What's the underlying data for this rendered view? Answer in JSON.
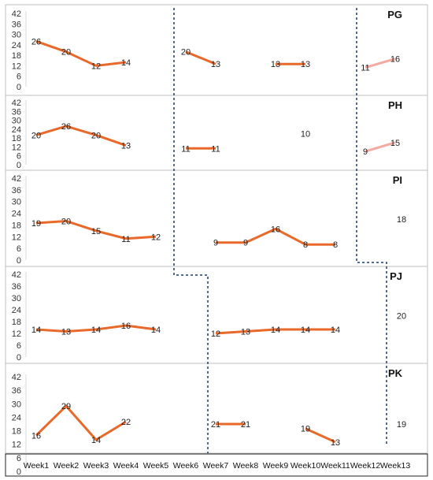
{
  "chart_data": {
    "type": "line",
    "categories": [
      "Week1",
      "Week2",
      "Week3",
      "Week4",
      "Week5",
      "Week6",
      "Week7",
      "Week8",
      "Week9",
      "Week10",
      "Week11",
      "Week12",
      "Week13"
    ],
    "ylim": [
      0,
      42
    ],
    "yticks": [
      0,
      6,
      12,
      18,
      24,
      30,
      36,
      42
    ],
    "grid": false,
    "colors": {
      "main": "#e8692a",
      "light": "#f4aaa0",
      "divider": "#1f3c64",
      "frame": "#bfbfbf"
    },
    "panels": [
      {
        "title": "PG",
        "segments": [
          {
            "style": "main",
            "points": [
              [
                1,
                26
              ],
              [
                2,
                20
              ],
              [
                3,
                12
              ],
              [
                4,
                14
              ]
            ]
          },
          {
            "style": "main",
            "points": [
              [
                6,
                20
              ],
              [
                7,
                13
              ]
            ]
          },
          {
            "style": "main",
            "points": [
              [
                9,
                13
              ],
              [
                10,
                13
              ]
            ]
          },
          {
            "style": "light",
            "points": [
              [
                12,
                11
              ],
              [
                13,
                16
              ]
            ]
          }
        ],
        "labels_only": []
      },
      {
        "title": "PH",
        "segments": [
          {
            "style": "main",
            "points": [
              [
                1,
                20
              ],
              [
                2,
                26
              ],
              [
                3,
                20
              ],
              [
                4,
                13
              ]
            ]
          },
          {
            "style": "main",
            "points": [
              [
                6,
                11
              ],
              [
                7,
                11
              ]
            ]
          },
          {
            "style": "light",
            "points": [
              [
                12,
                9
              ],
              [
                13,
                15
              ]
            ]
          }
        ],
        "labels_only": [
          {
            "x": 10,
            "text": "10"
          }
        ]
      },
      {
        "title": "PI",
        "segments": [
          {
            "style": "main",
            "points": [
              [
                1,
                19
              ],
              [
                2,
                20
              ],
              [
                3,
                15
              ],
              [
                4,
                11
              ],
              [
                5,
                12
              ]
            ]
          },
          {
            "style": "main",
            "points": [
              [
                7,
                9
              ],
              [
                8,
                9
              ],
              [
                9,
                16
              ],
              [
                10,
                8
              ],
              [
                11,
                8
              ]
            ]
          }
        ],
        "labels_only": [
          {
            "x": 13,
            "text": "18"
          }
        ]
      },
      {
        "title": "PJ",
        "segments": [
          {
            "style": "main",
            "points": [
              [
                1,
                14
              ],
              [
                2,
                13
              ],
              [
                3,
                14
              ],
              [
                4,
                16
              ],
              [
                5,
                14
              ]
            ]
          },
          {
            "style": "main",
            "points": [
              [
                7,
                12
              ],
              [
                8,
                13
              ],
              [
                9,
                14
              ],
              [
                10,
                14
              ],
              [
                11,
                14
              ]
            ]
          }
        ],
        "labels_only": [
          {
            "x": 13,
            "text": "20"
          }
        ]
      },
      {
        "title": "PK",
        "segments": [
          {
            "style": "main",
            "points": [
              [
                1,
                16
              ],
              [
                2,
                29
              ],
              [
                3,
                14
              ],
              [
                4,
                22
              ]
            ]
          },
          {
            "style": "main",
            "points": [
              [
                7,
                21
              ],
              [
                8,
                21
              ]
            ]
          },
          {
            "style": "main",
            "points": [
              [
                10,
                19
              ],
              [
                11,
                13
              ]
            ]
          }
        ],
        "labels_only": [
          {
            "x": 13,
            "text": "19"
          }
        ]
      }
    ]
  }
}
